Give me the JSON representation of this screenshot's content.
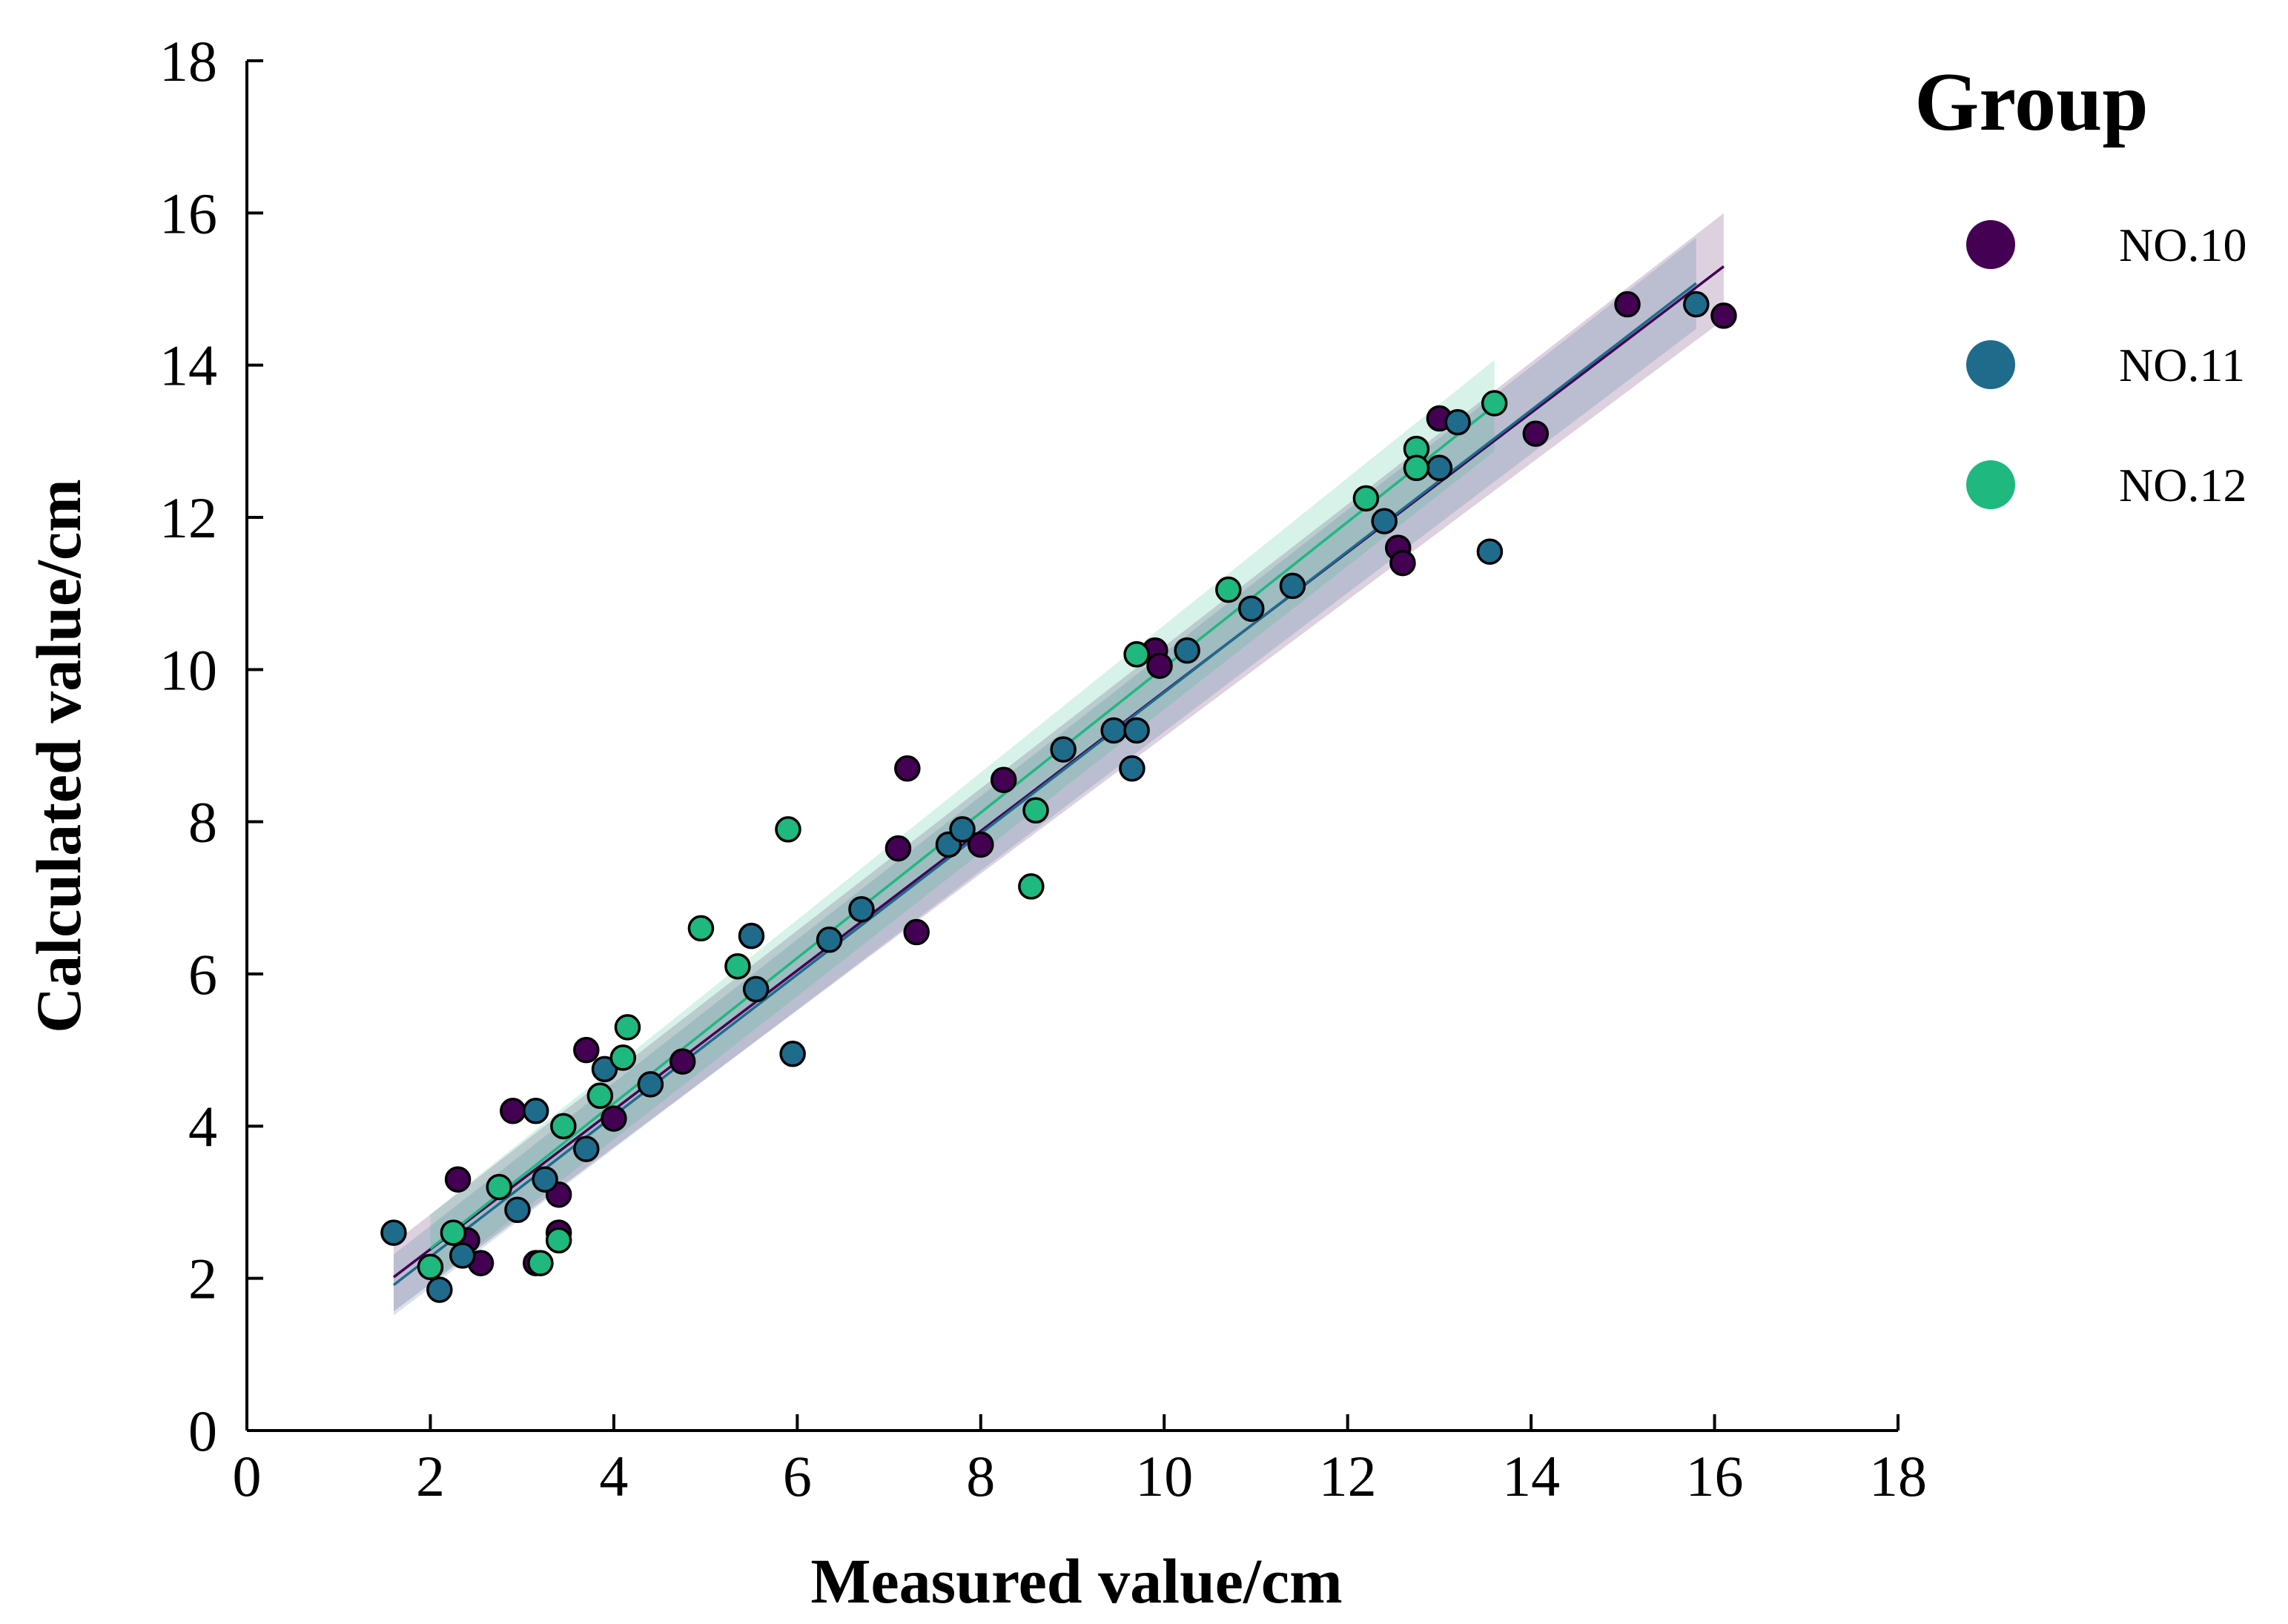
{
  "chart_data": {
    "type": "scatter",
    "title": "",
    "xlabel": "Measured value/cm",
    "ylabel": "Calculated value/cm",
    "xlim": [
      0,
      18
    ],
    "ylim": [
      0,
      18
    ],
    "xticks": [
      0,
      2,
      4,
      6,
      8,
      10,
      12,
      14,
      16,
      18
    ],
    "yticks": [
      0,
      2,
      4,
      6,
      8,
      10,
      12,
      14,
      16,
      18
    ],
    "grid": false,
    "legend": {
      "title": "Group",
      "position": "top-right"
    },
    "series": [
      {
        "name": "NO.10",
        "color": "#440154",
        "fit": {
          "x_range": [
            1.6,
            16.1
          ],
          "slope": 0.916,
          "intercept": 0.55,
          "ci_halfwidth": [
            0.45,
            0.7
          ]
        },
        "points": [
          [
            2.3,
            3.3
          ],
          [
            2.4,
            2.5
          ],
          [
            2.55,
            2.2
          ],
          [
            2.9,
            4.2
          ],
          [
            3.15,
            2.2
          ],
          [
            3.4,
            3.1
          ],
          [
            3.4,
            2.6
          ],
          [
            3.7,
            5.0
          ],
          [
            4.0,
            4.1
          ],
          [
            4.75,
            4.85
          ],
          [
            7.1,
            7.65
          ],
          [
            7.2,
            8.7
          ],
          [
            7.3,
            6.55
          ],
          [
            8.0,
            7.7
          ],
          [
            8.25,
            8.55
          ],
          [
            9.9,
            10.25
          ],
          [
            9.95,
            10.05
          ],
          [
            12.55,
            11.6
          ],
          [
            12.6,
            11.4
          ],
          [
            13.0,
            13.3
          ],
          [
            14.05,
            13.1
          ],
          [
            15.05,
            14.8
          ],
          [
            16.1,
            14.65
          ]
        ]
      },
      {
        "name": "NO.11",
        "color": "#1f6b8c",
        "fit": {
          "x_range": [
            1.6,
            15.8
          ],
          "slope": 0.927,
          "intercept": 0.43,
          "ci_halfwidth": [
            0.4,
            0.6
          ]
        },
        "points": [
          [
            1.6,
            2.6
          ],
          [
            2.1,
            1.85
          ],
          [
            2.35,
            2.3
          ],
          [
            2.95,
            2.9
          ],
          [
            3.15,
            4.2
          ],
          [
            3.25,
            3.3
          ],
          [
            3.7,
            3.7
          ],
          [
            3.9,
            4.75
          ],
          [
            4.4,
            4.55
          ],
          [
            5.5,
            6.5
          ],
          [
            5.55,
            5.8
          ],
          [
            5.95,
            4.95
          ],
          [
            6.35,
            6.45
          ],
          [
            6.7,
            6.85
          ],
          [
            7.65,
            7.7
          ],
          [
            7.8,
            7.9
          ],
          [
            8.9,
            8.95
          ],
          [
            9.45,
            9.2
          ],
          [
            9.65,
            8.7
          ],
          [
            9.7,
            9.2
          ],
          [
            10.25,
            10.25
          ],
          [
            10.95,
            10.8
          ],
          [
            11.4,
            11.1
          ],
          [
            12.4,
            11.95
          ],
          [
            13.0,
            12.65
          ],
          [
            13.2,
            13.25
          ],
          [
            13.55,
            11.55
          ],
          [
            15.8,
            14.8
          ]
        ]
      },
      {
        "name": "NO.12",
        "color": "#1fb87f",
        "fit": {
          "x_range": [
            2.0,
            13.6
          ],
          "slope": 0.955,
          "intercept": 0.48,
          "ci_halfwidth": [
            0.45,
            0.6
          ]
        },
        "points": [
          [
            2.0,
            2.15
          ],
          [
            2.25,
            2.6
          ],
          [
            2.75,
            3.2
          ],
          [
            3.2,
            2.2
          ],
          [
            3.4,
            2.5
          ],
          [
            3.45,
            4.0
          ],
          [
            3.85,
            4.4
          ],
          [
            4.1,
            4.9
          ],
          [
            4.15,
            5.3
          ],
          [
            4.95,
            6.6
          ],
          [
            5.35,
            6.1
          ],
          [
            5.9,
            7.9
          ],
          [
            8.55,
            7.15
          ],
          [
            8.6,
            8.15
          ],
          [
            9.7,
            10.2
          ],
          [
            10.7,
            11.05
          ],
          [
            12.2,
            12.25
          ],
          [
            12.75,
            12.9
          ],
          [
            12.75,
            12.65
          ],
          [
            13.6,
            13.5
          ]
        ]
      }
    ]
  }
}
